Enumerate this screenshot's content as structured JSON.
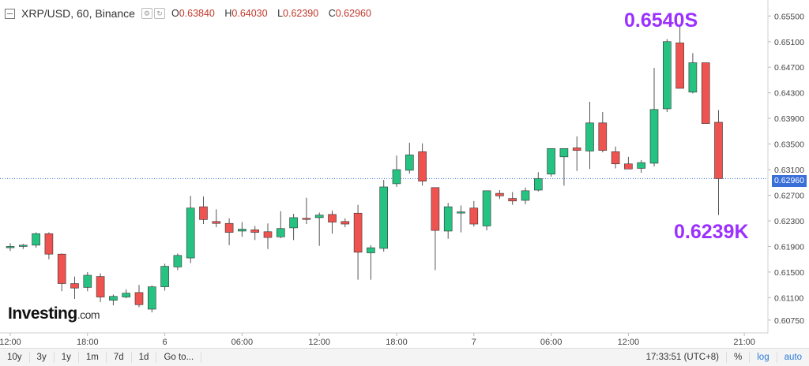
{
  "header": {
    "title": "XRP/USD, 60, Binance",
    "open_label": "O",
    "open": "0.63840",
    "high_label": "H",
    "high": "0.64030",
    "low_label": "L",
    "low": "0.62390",
    "close_label": "C",
    "close": "0.62960"
  },
  "annotations": {
    "high": "0.6540S",
    "low": "0.6239K"
  },
  "logo": {
    "main": "Investing",
    "suffix": ".com"
  },
  "current_price": "0.62960",
  "footer": {
    "timeframes": [
      "10y",
      "3y",
      "1y",
      "1m",
      "7d",
      "1d",
      "Go to..."
    ],
    "clock": "17:33:51 (UTC+8)",
    "percent": "%",
    "log": "log",
    "auto": "auto"
  },
  "colors": {
    "up": "#26c281",
    "down": "#ef5350",
    "wick": "#555555",
    "accent": "#9b30ff",
    "price_line": "#3a6fd8"
  },
  "chart_data": {
    "type": "candlestick",
    "title": "XRP/USD, 60, Binance",
    "ylim": [
      0.6055,
      0.6575
    ],
    "y_ticks": [
      "0.65500",
      "0.65100",
      "0.64700",
      "0.64300",
      "0.63900",
      "0.63500",
      "0.63100",
      "0.62700",
      "0.62300",
      "0.61900",
      "0.61500",
      "0.61100",
      "0.60750"
    ],
    "y_tick_values": [
      0.655,
      0.651,
      0.647,
      0.643,
      0.639,
      0.635,
      0.631,
      0.627,
      0.623,
      0.619,
      0.615,
      0.611,
      0.6075
    ],
    "x_ticks": [
      {
        "label": "12:00",
        "index": 0
      },
      {
        "label": "18:00",
        "index": 6
      },
      {
        "label": "6",
        "index": 12
      },
      {
        "label": "06:00",
        "index": 18
      },
      {
        "label": "12:00",
        "index": 24
      },
      {
        "label": "18:00",
        "index": 30
      },
      {
        "label": "7",
        "index": 36
      },
      {
        "label": "06:00",
        "index": 42
      },
      {
        "label": "12:00",
        "index": 48
      },
      {
        "label": "21:00",
        "index": 57
      }
    ],
    "candles": [
      {
        "o": 0.6188,
        "h": 0.6195,
        "l": 0.6183,
        "c": 0.619
      },
      {
        "o": 0.619,
        "h": 0.6194,
        "l": 0.6186,
        "c": 0.6192
      },
      {
        "o": 0.6192,
        "h": 0.6212,
        "l": 0.6188,
        "c": 0.621
      },
      {
        "o": 0.621,
        "h": 0.6212,
        "l": 0.617,
        "c": 0.6178
      },
      {
        "o": 0.6178,
        "h": 0.6179,
        "l": 0.612,
        "c": 0.6132
      },
      {
        "o": 0.6132,
        "h": 0.6143,
        "l": 0.6108,
        "c": 0.6125
      },
      {
        "o": 0.6126,
        "h": 0.615,
        "l": 0.612,
        "c": 0.6145
      },
      {
        "o": 0.6143,
        "h": 0.6148,
        "l": 0.6103,
        "c": 0.6111
      },
      {
        "o": 0.6106,
        "h": 0.6115,
        "l": 0.6098,
        "c": 0.6112
      },
      {
        "o": 0.6111,
        "h": 0.6123,
        "l": 0.6109,
        "c": 0.6117
      },
      {
        "o": 0.6118,
        "h": 0.613,
        "l": 0.6095,
        "c": 0.6099
      },
      {
        "o": 0.6092,
        "h": 0.6129,
        "l": 0.6087,
        "c": 0.6127
      },
      {
        "o": 0.6127,
        "h": 0.6163,
        "l": 0.6121,
        "c": 0.6159
      },
      {
        "o": 0.6158,
        "h": 0.6179,
        "l": 0.6153,
        "c": 0.6176
      },
      {
        "o": 0.6172,
        "h": 0.6269,
        "l": 0.6164,
        "c": 0.625
      },
      {
        "o": 0.6252,
        "h": 0.6268,
        "l": 0.6225,
        "c": 0.6232
      },
      {
        "o": 0.6229,
        "h": 0.6248,
        "l": 0.622,
        "c": 0.6226
      },
      {
        "o": 0.6226,
        "h": 0.6234,
        "l": 0.6192,
        "c": 0.6212
      },
      {
        "o": 0.6214,
        "h": 0.6228,
        "l": 0.6205,
        "c": 0.6217
      },
      {
        "o": 0.6216,
        "h": 0.6222,
        "l": 0.62,
        "c": 0.6212
      },
      {
        "o": 0.6213,
        "h": 0.6226,
        "l": 0.6186,
        "c": 0.6204
      },
      {
        "o": 0.6205,
        "h": 0.6245,
        "l": 0.6203,
        "c": 0.6218
      },
      {
        "o": 0.6219,
        "h": 0.6241,
        "l": 0.62,
        "c": 0.6235
      },
      {
        "o": 0.6234,
        "h": 0.6266,
        "l": 0.6225,
        "c": 0.6233
      },
      {
        "o": 0.6235,
        "h": 0.6243,
        "l": 0.6191,
        "c": 0.6239
      },
      {
        "o": 0.624,
        "h": 0.6246,
        "l": 0.621,
        "c": 0.6228
      },
      {
        "o": 0.6229,
        "h": 0.6234,
        "l": 0.622,
        "c": 0.6225
      },
      {
        "o": 0.6242,
        "h": 0.6255,
        "l": 0.6138,
        "c": 0.6181
      },
      {
        "o": 0.618,
        "h": 0.6192,
        "l": 0.6138,
        "c": 0.6188
      },
      {
        "o": 0.6187,
        "h": 0.6294,
        "l": 0.6182,
        "c": 0.6283
      },
      {
        "o": 0.6288,
        "h": 0.6332,
        "l": 0.6283,
        "c": 0.631
      },
      {
        "o": 0.6309,
        "h": 0.6352,
        "l": 0.6304,
        "c": 0.6333
      },
      {
        "o": 0.6338,
        "h": 0.6351,
        "l": 0.6285,
        "c": 0.6292
      },
      {
        "o": 0.6282,
        "h": 0.6282,
        "l": 0.6153,
        "c": 0.6215
      },
      {
        "o": 0.6214,
        "h": 0.6258,
        "l": 0.6202,
        "c": 0.6252
      },
      {
        "o": 0.6244,
        "h": 0.6254,
        "l": 0.6212,
        "c": 0.6244
      },
      {
        "o": 0.625,
        "h": 0.6261,
        "l": 0.6221,
        "c": 0.6225
      },
      {
        "o": 0.6222,
        "h": 0.6275,
        "l": 0.6215,
        "c": 0.6277
      },
      {
        "o": 0.6273,
        "h": 0.6278,
        "l": 0.6264,
        "c": 0.6269
      },
      {
        "o": 0.6265,
        "h": 0.6275,
        "l": 0.6255,
        "c": 0.6261
      },
      {
        "o": 0.6262,
        "h": 0.6282,
        "l": 0.6256,
        "c": 0.6277
      },
      {
        "o": 0.6278,
        "h": 0.6306,
        "l": 0.6276,
        "c": 0.6296
      },
      {
        "o": 0.6303,
        "h": 0.6343,
        "l": 0.6299,
        "c": 0.6343
      },
      {
        "o": 0.633,
        "h": 0.6341,
        "l": 0.6285,
        "c": 0.6343
      },
      {
        "o": 0.6344,
        "h": 0.6362,
        "l": 0.6308,
        "c": 0.634
      },
      {
        "o": 0.6339,
        "h": 0.6416,
        "l": 0.6311,
        "c": 0.6383
      },
      {
        "o": 0.6383,
        "h": 0.64,
        "l": 0.6337,
        "c": 0.634
      },
      {
        "o": 0.6338,
        "h": 0.6346,
        "l": 0.6312,
        "c": 0.6319
      },
      {
        "o": 0.6319,
        "h": 0.633,
        "l": 0.6312,
        "c": 0.6311
      },
      {
        "o": 0.6312,
        "h": 0.6325,
        "l": 0.6305,
        "c": 0.6321
      },
      {
        "o": 0.632,
        "h": 0.6469,
        "l": 0.6315,
        "c": 0.6404
      },
      {
        "o": 0.6405,
        "h": 0.6514,
        "l": 0.64,
        "c": 0.651
      },
      {
        "o": 0.6508,
        "h": 0.6535,
        "l": 0.6437,
        "c": 0.6437
      },
      {
        "o": 0.6431,
        "h": 0.6492,
        "l": 0.6429,
        "c": 0.6477
      },
      {
        "o": 0.6477,
        "h": 0.6477,
        "l": 0.6382,
        "c": 0.6382
      },
      {
        "o": 0.6384,
        "h": 0.6403,
        "l": 0.6239,
        "c": 0.6296
      }
    ]
  }
}
